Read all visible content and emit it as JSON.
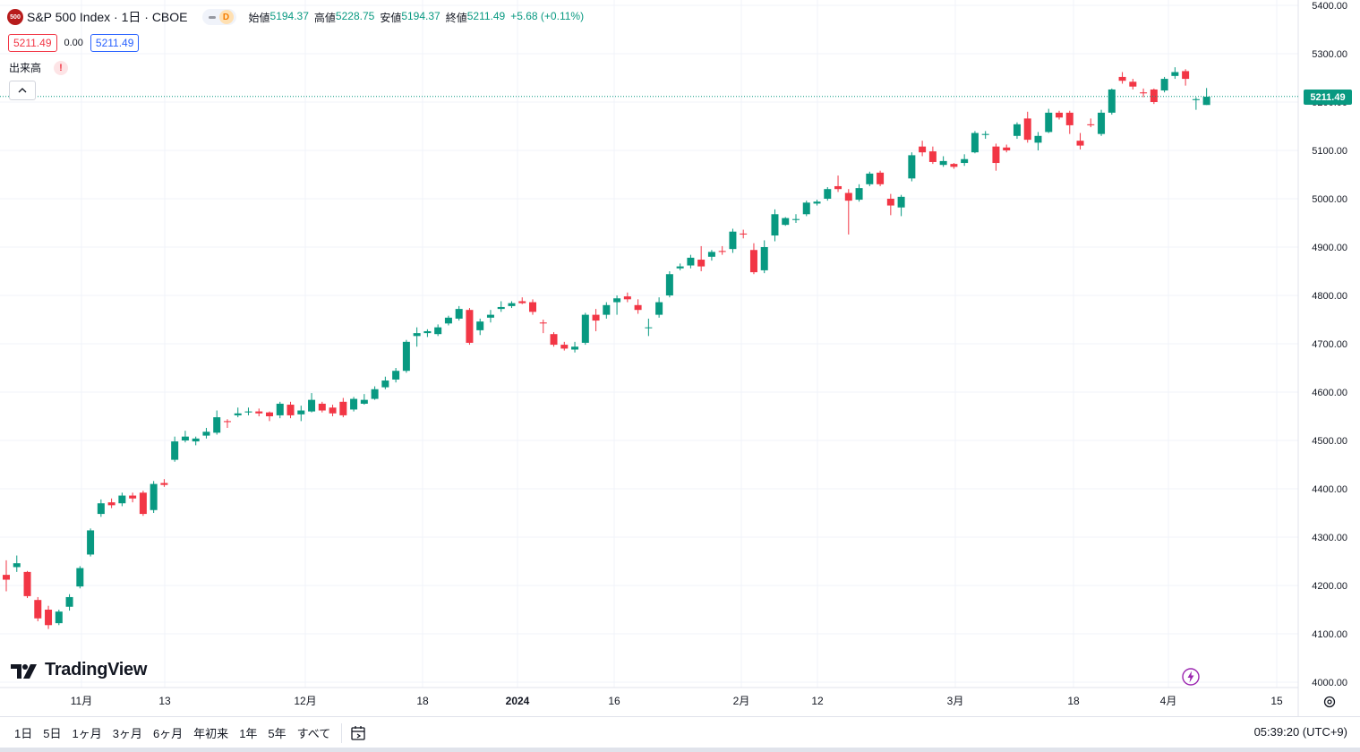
{
  "header": {
    "symbol_badge": "500",
    "title": "S&P 500 Index · 1日 · CBOE",
    "pill_letter": "D",
    "ohlc": {
      "open_label": "始値",
      "open": "5194.37",
      "high_label": "高値",
      "high": "5228.75",
      "low_label": "安値",
      "low": "5194.37",
      "close_label": "終値",
      "close": "5211.49",
      "change": "+5.68 (+0.11%)"
    },
    "bid": "5211.49",
    "spread": "0.00",
    "ask": "5211.49"
  },
  "volume": {
    "label": "出来高",
    "warning": "!"
  },
  "logo": {
    "text": "TradingView"
  },
  "price_tag": "5211.49",
  "bottom_bar": {
    "ranges": [
      "1日",
      "5日",
      "1ヶ月",
      "3ヶ月",
      "6ヶ月",
      "年初来",
      "1年",
      "5年",
      "すべて"
    ],
    "clock": "05:39:20 (UTC+9)"
  },
  "colors": {
    "up": "#089981",
    "down": "#f23645",
    "accent": "#2962ff"
  },
  "chart_data": {
    "type": "candlestick",
    "y_ticks": [
      "5400.00",
      "5300.00",
      "5200.00",
      "5100.00",
      "5000.00",
      "4900.00",
      "4800.00",
      "4700.00",
      "4600.00",
      "4500.00",
      "4400.00",
      "4300.00",
      "4200.00",
      "4100.00",
      "4000.00"
    ],
    "x_ticks": [
      "11月",
      "13",
      "12月",
      "18",
      "2024",
      "16",
      "2月",
      "12",
      "3月",
      "18",
      "4月",
      "15"
    ],
    "ylim": [
      4000,
      5400
    ],
    "last_price": 5211.49,
    "candles": [
      [
        4222,
        4212,
        4252,
        4188
      ],
      [
        4238,
        4246,
        4262,
        4228
      ],
      [
        4228,
        4178,
        4230,
        4174
      ],
      [
        4170,
        4132,
        4176,
        4126
      ],
      [
        4150,
        4118,
        4158,
        4110
      ],
      [
        4122,
        4146,
        4150,
        4118
      ],
      [
        4156,
        4176,
        4182,
        4148
      ],
      [
        4198,
        4236,
        4240,
        4194
      ],
      [
        4264,
        4314,
        4318,
        4260
      ],
      [
        4348,
        4370,
        4378,
        4342
      ],
      [
        4372,
        4366,
        4380,
        4360
      ],
      [
        4370,
        4386,
        4392,
        4364
      ],
      [
        4386,
        4380,
        4392,
        4372
      ],
      [
        4392,
        4348,
        4396,
        4344
      ],
      [
        4356,
        4410,
        4416,
        4350
      ],
      [
        4412,
        4408,
        4420,
        4404
      ],
      [
        4460,
        4498,
        4508,
        4456
      ],
      [
        4500,
        4508,
        4520,
        4496
      ],
      [
        4498,
        4504,
        4508,
        4490
      ],
      [
        4510,
        4518,
        4526,
        4504
      ],
      [
        4516,
        4548,
        4562,
        4512
      ],
      [
        4540,
        4538,
        4544,
        4526
      ],
      [
        4552,
        4556,
        4568,
        4548
      ],
      [
        4558,
        4560,
        4568,
        4552
      ],
      [
        4560,
        4556,
        4566,
        4550
      ],
      [
        4558,
        4550,
        4560,
        4540
      ],
      [
        4552,
        4576,
        4580,
        4546
      ],
      [
        4574,
        4552,
        4580,
        4546
      ],
      [
        4554,
        4562,
        4572,
        4540
      ],
      [
        4560,
        4584,
        4598,
        4558
      ],
      [
        4576,
        4562,
        4580,
        4558
      ],
      [
        4568,
        4556,
        4574,
        4550
      ],
      [
        4580,
        4552,
        4588,
        4548
      ],
      [
        4564,
        4586,
        4590,
        4560
      ],
      [
        4576,
        4584,
        4596,
        4574
      ],
      [
        4586,
        4606,
        4612,
        4584
      ],
      [
        4610,
        4624,
        4632,
        4606
      ],
      [
        4626,
        4644,
        4650,
        4620
      ],
      [
        4644,
        4704,
        4708,
        4640
      ],
      [
        4716,
        4722,
        4734,
        4694
      ],
      [
        4722,
        4726,
        4730,
        4714
      ],
      [
        4720,
        4734,
        4740,
        4716
      ],
      [
        4742,
        4754,
        4758,
        4738
      ],
      [
        4752,
        4772,
        4778,
        4748
      ],
      [
        4770,
        4702,
        4774,
        4698
      ],
      [
        4728,
        4746,
        4752,
        4718
      ],
      [
        4754,
        4760,
        4770,
        4744
      ],
      [
        4772,
        4776,
        4788,
        4766
      ],
      [
        4778,
        4784,
        4788,
        4774
      ],
      [
        4788,
        4784,
        4796,
        4782
      ],
      [
        4786,
        4766,
        4792,
        4760
      ],
      [
        4744,
        4742,
        4750,
        4722
      ],
      [
        4720,
        4698,
        4724,
        4694
      ],
      [
        4698,
        4690,
        4704,
        4686
      ],
      [
        4688,
        4694,
        4704,
        4682
      ],
      [
        4702,
        4760,
        4764,
        4698
      ],
      [
        4760,
        4748,
        4772,
        4726
      ],
      [
        4760,
        4780,
        4786,
        4752
      ],
      [
        4786,
        4794,
        4800,
        4760
      ],
      [
        4798,
        4792,
        4806,
        4786
      ],
      [
        4780,
        4770,
        4792,
        4762
      ],
      [
        4734,
        4734,
        4752,
        4716
      ],
      [
        4760,
        4786,
        4796,
        4754
      ],
      [
        4800,
        4844,
        4850,
        4796
      ],
      [
        4856,
        4860,
        4866,
        4852
      ],
      [
        4862,
        4878,
        4884,
        4856
      ],
      [
        4874,
        4860,
        4902,
        4850
      ],
      [
        4880,
        4890,
        4894,
        4872
      ],
      [
        4892,
        4890,
        4902,
        4884
      ],
      [
        4896,
        4932,
        4938,
        4888
      ],
      [
        4928,
        4926,
        4936,
        4918
      ],
      [
        4894,
        4848,
        4908,
        4844
      ],
      [
        4852,
        4900,
        4914,
        4846
      ],
      [
        4924,
        4968,
        4978,
        4912
      ],
      [
        4946,
        4960,
        4962,
        4944
      ],
      [
        4956,
        4958,
        4968,
        4950
      ],
      [
        4968,
        4992,
        4996,
        4964
      ],
      [
        4990,
        4994,
        4998,
        4986
      ],
      [
        5000,
        5020,
        5024,
        4996
      ],
      [
        5026,
        5020,
        5048,
        5014
      ],
      [
        5012,
        4996,
        5020,
        4926
      ],
      [
        4998,
        5022,
        5030,
        4994
      ],
      [
        5030,
        5052,
        5056,
        5026
      ],
      [
        5054,
        5030,
        5058,
        5026
      ],
      [
        5000,
        4986,
        5010,
        4966
      ],
      [
        4982,
        5004,
        5008,
        4964
      ],
      [
        5042,
        5090,
        5096,
        5036
      ],
      [
        5108,
        5096,
        5120,
        5088
      ],
      [
        5098,
        5076,
        5108,
        5072
      ],
      [
        5070,
        5078,
        5088,
        5066
      ],
      [
        5072,
        5066,
        5074,
        5062
      ],
      [
        5074,
        5082,
        5092,
        5068
      ],
      [
        5096,
        5136,
        5140,
        5094
      ],
      [
        5132,
        5134,
        5140,
        5124
      ],
      [
        5108,
        5074,
        5114,
        5058
      ],
      [
        5106,
        5100,
        5112,
        5096
      ],
      [
        5130,
        5154,
        5158,
        5124
      ],
      [
        5166,
        5122,
        5180,
        5116
      ],
      [
        5116,
        5130,
        5138,
        5100
      ],
      [
        5138,
        5178,
        5186,
        5136
      ],
      [
        5178,
        5168,
        5182,
        5164
      ],
      [
        5178,
        5152,
        5182,
        5134
      ],
      [
        5120,
        5110,
        5136,
        5102
      ],
      [
        5154,
        5152,
        5166,
        5148
      ],
      [
        5134,
        5178,
        5184,
        5130
      ],
      [
        5178,
        5226,
        5228,
        5174
      ],
      [
        5252,
        5244,
        5262,
        5238
      ],
      [
        5242,
        5232,
        5248,
        5226
      ],
      [
        5220,
        5218,
        5228,
        5210
      ],
      [
        5226,
        5200,
        5228,
        5196
      ],
      [
        5224,
        5248,
        5252,
        5220
      ],
      [
        5254,
        5262,
        5272,
        5248
      ],
      [
        5264,
        5248,
        5268,
        5234
      ],
      [
        5204,
        5206,
        5210,
        5184
      ],
      [
        5194,
        5211,
        5229,
        5194
      ]
    ]
  }
}
